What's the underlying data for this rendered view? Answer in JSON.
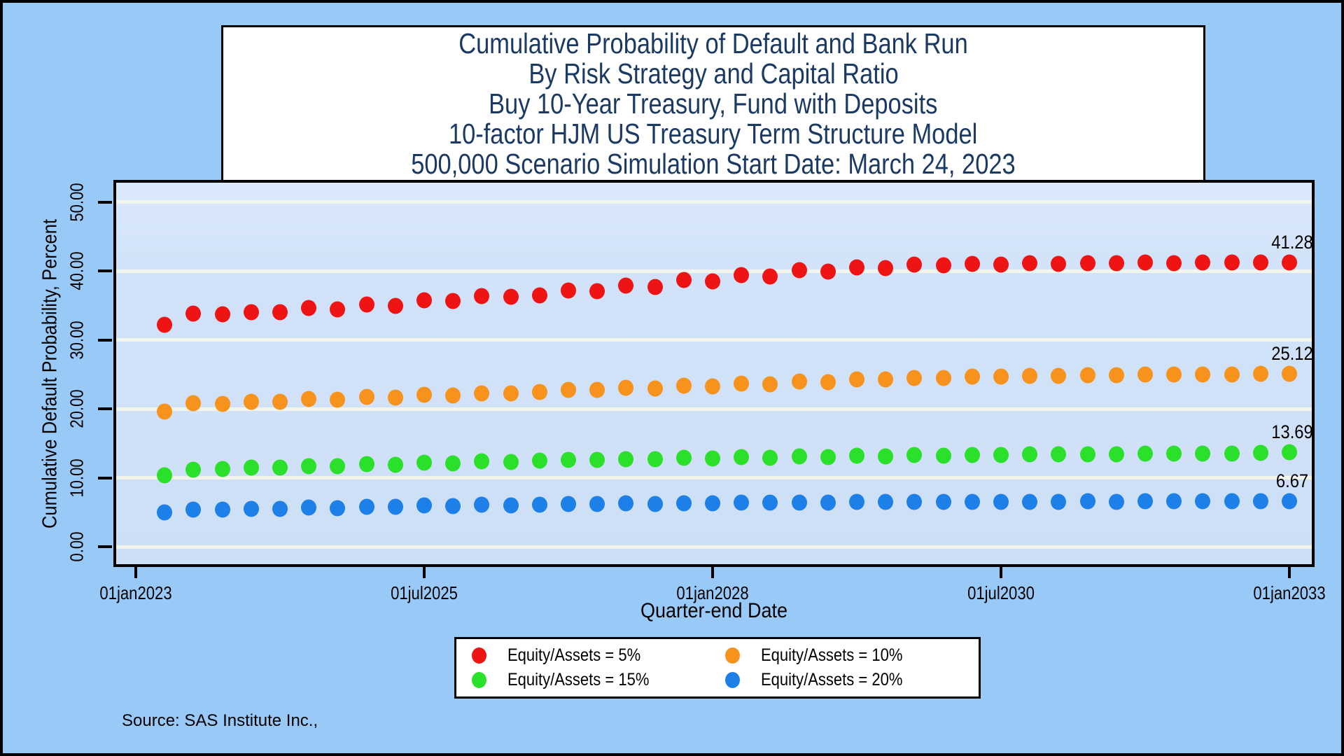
{
  "page": {
    "background_color": "#99c9f7",
    "border_color": "#000000",
    "plot_background_top": "#dce9fc",
    "plot_background_bottom": "#cddff6",
    "gridline_color": "#f2f5ec",
    "title_text_color": "#1b3a63"
  },
  "chart_data": {
    "type": "scatter",
    "title_lines": [
      "Cumulative Probability of Default and Bank Run",
      "By Risk Strategy and Capital Ratio",
      "Buy 10-Year Treasury, Fund with Deposits",
      "10-factor HJM US Treasury Term Structure Model",
      "500,000 Scenario Simulation Start Date: March 24, 2023"
    ],
    "xlabel": "Quarter-end Date",
    "ylabel": "Cumulative Default Probability, Percent",
    "x_tick_labels": [
      "01jan2023",
      "01jul2025",
      "01jan2028",
      "01jul2030",
      "01jan2033"
    ],
    "x_tick_years_from_2023": [
      0,
      2.5,
      5,
      7.5,
      10
    ],
    "y_tick_labels": [
      "0.00",
      "10.00",
      "20.00",
      "30.00",
      "40.00",
      "50.00"
    ],
    "y_tick_values": [
      0,
      10,
      20,
      30,
      40,
      50
    ],
    "ylim": [
      0,
      50
    ],
    "grid": {
      "horizontal": true,
      "vertical": false
    },
    "legend_position": "bottom-center",
    "quarter_end_dates": [
      "31mar2023",
      "30jun2023",
      "30sep2023",
      "31dec2023",
      "31mar2024",
      "30jun2024",
      "30sep2024",
      "31dec2024",
      "31mar2025",
      "30jun2025",
      "30sep2025",
      "31dec2025",
      "31mar2026",
      "30jun2026",
      "30sep2026",
      "31dec2026",
      "31mar2027",
      "30jun2027",
      "30sep2027",
      "31dec2027",
      "31mar2028",
      "30jun2028",
      "30sep2028",
      "31dec2028",
      "31mar2029",
      "30jun2029",
      "30sep2029",
      "31dec2029",
      "31mar2030",
      "30jun2030",
      "30sep2030",
      "31dec2030",
      "31mar2031",
      "30jun2031",
      "30sep2031",
      "31dec2031",
      "31mar2032",
      "30jun2032",
      "30sep2032",
      "31dec2032"
    ],
    "series": [
      {
        "name": "Equity/Assets = 5%",
        "color": "#ee1414",
        "end_label": "41.28",
        "values": [
          32.2,
          33.8,
          33.75,
          34.0,
          34.0,
          34.6,
          34.4,
          35.1,
          34.95,
          35.8,
          35.65,
          36.4,
          36.3,
          36.45,
          37.2,
          37.1,
          37.9,
          37.7,
          38.7,
          38.5,
          39.4,
          39.2,
          40.1,
          39.9,
          40.5,
          40.45,
          40.9,
          40.8,
          41.0,
          40.95,
          41.1,
          41.05,
          41.15,
          41.1,
          41.2,
          41.15,
          41.22,
          41.2,
          41.25,
          41.28
        ]
      },
      {
        "name": "Equity/Assets = 10%",
        "color": "#f7921d",
        "end_label": "25.12",
        "values": [
          19.6,
          20.8,
          20.75,
          21.0,
          21.0,
          21.4,
          21.3,
          21.8,
          21.7,
          22.1,
          22.0,
          22.3,
          22.25,
          22.5,
          22.8,
          22.75,
          23.1,
          23.0,
          23.4,
          23.3,
          23.7,
          23.6,
          24.0,
          23.9,
          24.3,
          24.25,
          24.5,
          24.45,
          24.7,
          24.65,
          24.8,
          24.78,
          24.9,
          24.88,
          24.95,
          24.95,
          25.0,
          25.0,
          25.05,
          25.12
        ]
      },
      {
        "name": "Equity/Assets = 15%",
        "color": "#2ae02a",
        "end_label": "13.69",
        "values": [
          10.4,
          11.2,
          11.25,
          11.5,
          11.5,
          11.75,
          11.7,
          12.0,
          11.95,
          12.2,
          12.15,
          12.4,
          12.35,
          12.5,
          12.6,
          12.6,
          12.75,
          12.7,
          12.9,
          12.85,
          13.0,
          12.95,
          13.1,
          13.05,
          13.2,
          13.15,
          13.3,
          13.25,
          13.35,
          13.3,
          13.4,
          13.4,
          13.45,
          13.45,
          13.5,
          13.5,
          13.55,
          13.55,
          13.6,
          13.69
        ]
      },
      {
        "name": "Equity/Assets = 20%",
        "color": "#1c80e8",
        "end_label": "6.67",
        "values": [
          5.0,
          5.4,
          5.4,
          5.55,
          5.55,
          5.7,
          5.65,
          5.85,
          5.8,
          6.0,
          5.95,
          6.1,
          6.05,
          6.15,
          6.2,
          6.2,
          6.28,
          6.25,
          6.35,
          6.3,
          6.4,
          6.38,
          6.45,
          6.42,
          6.5,
          6.48,
          6.52,
          6.5,
          6.55,
          6.53,
          6.58,
          6.56,
          6.6,
          6.58,
          6.62,
          6.6,
          6.63,
          6.62,
          6.65,
          6.67
        ]
      }
    ],
    "source_note": "Source: SAS Institute Inc.,"
  }
}
